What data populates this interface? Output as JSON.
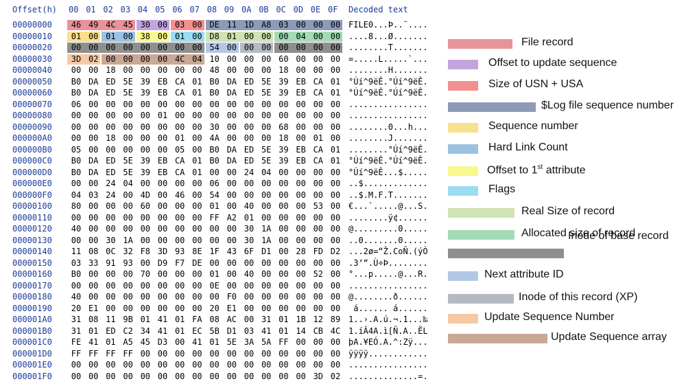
{
  "header": {
    "offset_title": "Offset(h)",
    "byte_cols": [
      "00",
      "01",
      "02",
      "03",
      "04",
      "05",
      "06",
      "07",
      "08",
      "09",
      "0A",
      "0B",
      "0C",
      "0D",
      "0E",
      "0F"
    ],
    "decoded_title": "Decoded text"
  },
  "rows": [
    {
      "offset": "00000000",
      "bytes": [
        "46",
        "49",
        "4C",
        "45",
        "30",
        "00",
        "03",
        "00",
        "DE",
        "11",
        "1D",
        "A8",
        "03",
        "00",
        "00",
        "00"
      ],
      "text": "FILE0...Þ..¨...."
    },
    {
      "offset": "00000010",
      "bytes": [
        "01",
        "00",
        "01",
        "00",
        "38",
        "00",
        "01",
        "00",
        "D8",
        "01",
        "00",
        "00",
        "00",
        "04",
        "00",
        "00"
      ],
      "text": "....8...Ø......."
    },
    {
      "offset": "00000020",
      "bytes": [
        "00",
        "00",
        "00",
        "00",
        "00",
        "00",
        "00",
        "00",
        "54",
        "00",
        "00",
        "00",
        "00",
        "00",
        "00",
        "00"
      ],
      "text": "........T......."
    },
    {
      "offset": "00000030",
      "bytes": [
        "3D",
        "02",
        "00",
        "00",
        "00",
        "00",
        "4C",
        "04",
        "10",
        "00",
        "00",
        "00",
        "60",
        "00",
        "00",
        "00"
      ],
      "text": "=.....L.....`..."
    },
    {
      "offset": "00000040",
      "bytes": [
        "00",
        "00",
        "18",
        "00",
        "00",
        "00",
        "00",
        "00",
        "48",
        "00",
        "00",
        "00",
        "18",
        "00",
        "00",
        "00"
      ],
      "text": "........H......."
    },
    {
      "offset": "00000050",
      "bytes": [
        "B0",
        "DA",
        "ED",
        "5E",
        "39",
        "EB",
        "CA",
        "01",
        "B0",
        "DA",
        "ED",
        "5E",
        "39",
        "EB",
        "CA",
        "01"
      ],
      "text": "°Úí^9ëÊ.°Úí^9ëÊ."
    },
    {
      "offset": "00000060",
      "bytes": [
        "B0",
        "DA",
        "ED",
        "5E",
        "39",
        "EB",
        "CA",
        "01",
        "B0",
        "DA",
        "ED",
        "5E",
        "39",
        "EB",
        "CA",
        "01"
      ],
      "text": "°Úí^9ëÊ.°Úí^9ëÊ."
    },
    {
      "offset": "00000070",
      "bytes": [
        "06",
        "00",
        "00",
        "00",
        "00",
        "00",
        "00",
        "00",
        "00",
        "00",
        "00",
        "00",
        "00",
        "00",
        "00",
        "00"
      ],
      "text": "................"
    },
    {
      "offset": "00000080",
      "bytes": [
        "00",
        "00",
        "00",
        "00",
        "00",
        "01",
        "00",
        "00",
        "00",
        "00",
        "00",
        "00",
        "00",
        "00",
        "00",
        "00"
      ],
      "text": "................"
    },
    {
      "offset": "00000090",
      "bytes": [
        "00",
        "00",
        "00",
        "00",
        "00",
        "00",
        "00",
        "00",
        "30",
        "00",
        "00",
        "00",
        "68",
        "00",
        "00",
        "00"
      ],
      "text": "........0...h..."
    },
    {
      "offset": "000000A0",
      "bytes": [
        "00",
        "00",
        "18",
        "00",
        "00",
        "00",
        "01",
        "00",
        "4A",
        "00",
        "00",
        "00",
        "18",
        "00",
        "01",
        "00"
      ],
      "text": "........J......."
    },
    {
      "offset": "000000B0",
      "bytes": [
        "05",
        "00",
        "00",
        "00",
        "00",
        "00",
        "05",
        "00",
        "B0",
        "DA",
        "ED",
        "5E",
        "39",
        "EB",
        "CA",
        "01"
      ],
      "text": "........°Úí^9ëÊ."
    },
    {
      "offset": "000000C0",
      "bytes": [
        "B0",
        "DA",
        "ED",
        "5E",
        "39",
        "EB",
        "CA",
        "01",
        "B0",
        "DA",
        "ED",
        "5E",
        "39",
        "EB",
        "CA",
        "01"
      ],
      "text": "°Úí^9ëÊ.°Úí^9ëÊ."
    },
    {
      "offset": "000000D0",
      "bytes": [
        "B0",
        "DA",
        "ED",
        "5E",
        "39",
        "EB",
        "CA",
        "01",
        "00",
        "00",
        "24",
        "04",
        "00",
        "00",
        "00",
        "00"
      ],
      "text": "°Úí^9ëÊ...$....."
    },
    {
      "offset": "000000E0",
      "bytes": [
        "00",
        "00",
        "24",
        "04",
        "00",
        "00",
        "00",
        "00",
        "06",
        "00",
        "00",
        "00",
        "00",
        "00",
        "00",
        "00"
      ],
      "text": "..$............."
    },
    {
      "offset": "000000F0",
      "bytes": [
        "04",
        "03",
        "24",
        "00",
        "4D",
        "00",
        "46",
        "00",
        "54",
        "00",
        "00",
        "00",
        "00",
        "00",
        "00",
        "00"
      ],
      "text": "..$.M.F.T......."
    },
    {
      "offset": "00000100",
      "bytes": [
        "80",
        "00",
        "00",
        "00",
        "60",
        "00",
        "00",
        "00",
        "01",
        "00",
        "40",
        "00",
        "00",
        "00",
        "53",
        "00"
      ],
      "text": "€...`.....@...S."
    },
    {
      "offset": "00000110",
      "bytes": [
        "00",
        "00",
        "00",
        "00",
        "00",
        "00",
        "00",
        "00",
        "FF",
        "A2",
        "01",
        "00",
        "00",
        "00",
        "00",
        "00"
      ],
      "text": "........ÿ¢......"
    },
    {
      "offset": "00000120",
      "bytes": [
        "40",
        "00",
        "00",
        "00",
        "00",
        "00",
        "00",
        "00",
        "00",
        "00",
        "30",
        "1A",
        "00",
        "00",
        "00",
        "00"
      ],
      "text": "@.........0....."
    },
    {
      "offset": "00000130",
      "bytes": [
        "00",
        "00",
        "30",
        "1A",
        "00",
        "00",
        "00",
        "00",
        "00",
        "00",
        "30",
        "1A",
        "00",
        "00",
        "00",
        "00"
      ],
      "text": "..0.......0....."
    },
    {
      "offset": "00000140",
      "bytes": [
        "11",
        "08",
        "0C",
        "32",
        "F8",
        "3D",
        "93",
        "8E",
        "1F",
        "43",
        "6F",
        "D1",
        "00",
        "28",
        "FD",
        "D2"
      ],
      "text": "...2ø=“Ž.CoÑ.(ýÒ"
    },
    {
      "offset": "00000150",
      "bytes": [
        "03",
        "33",
        "91",
        "93",
        "00",
        "D9",
        "F7",
        "DE",
        "00",
        "00",
        "00",
        "00",
        "00",
        "00",
        "00",
        "00"
      ],
      "text": ".3‘“.Ù÷Þ........"
    },
    {
      "offset": "00000160",
      "bytes": [
        "B0",
        "00",
        "00",
        "00",
        "70",
        "00",
        "00",
        "00",
        "01",
        "00",
        "40",
        "00",
        "00",
        "00",
        "52",
        "00"
      ],
      "text": "°...p.....@...R."
    },
    {
      "offset": "00000170",
      "bytes": [
        "00",
        "00",
        "00",
        "00",
        "00",
        "00",
        "00",
        "00",
        "0E",
        "00",
        "00",
        "00",
        "00",
        "00",
        "00",
        "00"
      ],
      "text": "................"
    },
    {
      "offset": "00000180",
      "bytes": [
        "40",
        "00",
        "00",
        "00",
        "00",
        "00",
        "00",
        "00",
        "00",
        "F0",
        "00",
        "00",
        "00",
        "00",
        "00",
        "00"
      ],
      "text": "@........ð......"
    },
    {
      "offset": "00000190",
      "bytes": [
        "20",
        "E1",
        "00",
        "00",
        "00",
        "00",
        "00",
        "00",
        "20",
        "E1",
        "00",
        "00",
        "00",
        "00",
        "00",
        "00"
      ],
      "text": " á...... á......"
    },
    {
      "offset": "000001A0",
      "bytes": [
        "31",
        "08",
        "11",
        "9B",
        "01",
        "41",
        "01",
        "FA",
        "08",
        "AC",
        "00",
        "31",
        "01",
        "1B",
        "12",
        "89"
      ],
      "text": "1..›.A.ú.¬.1...‰"
    },
    {
      "offset": "000001B0",
      "bytes": [
        "31",
        "01",
        "ED",
        "C2",
        "34",
        "41",
        "01",
        "EC",
        "5B",
        "D1",
        "03",
        "41",
        "01",
        "14",
        "CB",
        "4C"
      ],
      "text": "1.íÂ4A.ì[Ñ.A..ËL"
    },
    {
      "offset": "000001C0",
      "bytes": [
        "FE",
        "41",
        "01",
        "A5",
        "45",
        "D3",
        "00",
        "41",
        "01",
        "5E",
        "3A",
        "5A",
        "FF",
        "00",
        "00",
        "00"
      ],
      "text": "þA.¥EÓ.A.^:Zÿ..."
    },
    {
      "offset": "000001D0",
      "bytes": [
        "FF",
        "FF",
        "FF",
        "FF",
        "00",
        "00",
        "00",
        "00",
        "00",
        "00",
        "00",
        "00",
        "00",
        "00",
        "00",
        "00"
      ],
      "text": "ÿÿÿÿ............"
    },
    {
      "offset": "000001E0",
      "bytes": [
        "00",
        "00",
        "00",
        "00",
        "00",
        "00",
        "00",
        "00",
        "00",
        "00",
        "00",
        "00",
        "00",
        "00",
        "00",
        "00"
      ],
      "text": "................"
    },
    {
      "offset": "000001F0",
      "bytes": [
        "00",
        "00",
        "00",
        "00",
        "00",
        "00",
        "00",
        "00",
        "00",
        "00",
        "00",
        "00",
        "00",
        "00",
        "3D",
        "02"
      ],
      "text": "..............=."
    }
  ],
  "highlight_colors": {
    "file_record": "#e8939a",
    "offset_update_seq": "#c3a5dd",
    "size_usn_usa": "#f29090",
    "log_sequence_number": "#8e9bb8",
    "sequence_number": "#f8e08e",
    "hard_link_count": "#9cc2e2",
    "offset_first_attr": "#f8f890",
    "flags": "#9cdcf2",
    "real_size": "#cfe3b4",
    "allocated_size": "#a3dbb7",
    "base_record_inode": "#8f8f8f",
    "next_attr_id": "#b4c8e6",
    "this_record_inode": "#b5b9c2",
    "update_seq_number": "#f6c9a4",
    "update_seq_array": "#c9a896"
  },
  "legend": [
    {
      "label": "File record",
      "color": "#e8939a"
    },
    {
      "label": "Offset to update sequence",
      "color": "#c3a5dd"
    },
    {
      "label": "Size of USN + USA",
      "color": "#f29090"
    },
    {
      "label": "$Log file sequence number",
      "color": "#8e9bb8"
    },
    {
      "label": "Sequence number",
      "color": "#f8e08e"
    },
    {
      "label": "Hard Link Count",
      "color": "#9cc2e2"
    },
    {
      "label": "Offset to 1",
      "label_sup": "st",
      "label_tail": " attribute",
      "color": "#f8f890"
    },
    {
      "label": "Flags",
      "color": "#9cdcf2"
    },
    {
      "label": "Real Size of record",
      "color": "#cfe3b4"
    },
    {
      "label": "Allocated size of record",
      "color": "#a3dbb7"
    },
    {
      "label": "Inode of base record",
      "color": "#8f8f8f"
    },
    {
      "label": "Next attribute ID",
      "color": "#b4c8e6"
    },
    {
      "label": "Inode of this record (XP)",
      "color": "#b5b9c2"
    },
    {
      "label": "Update Sequence Number",
      "color": "#f6c9a4"
    },
    {
      "label": "Update Sequence array",
      "color": "#c9a896"
    }
  ]
}
